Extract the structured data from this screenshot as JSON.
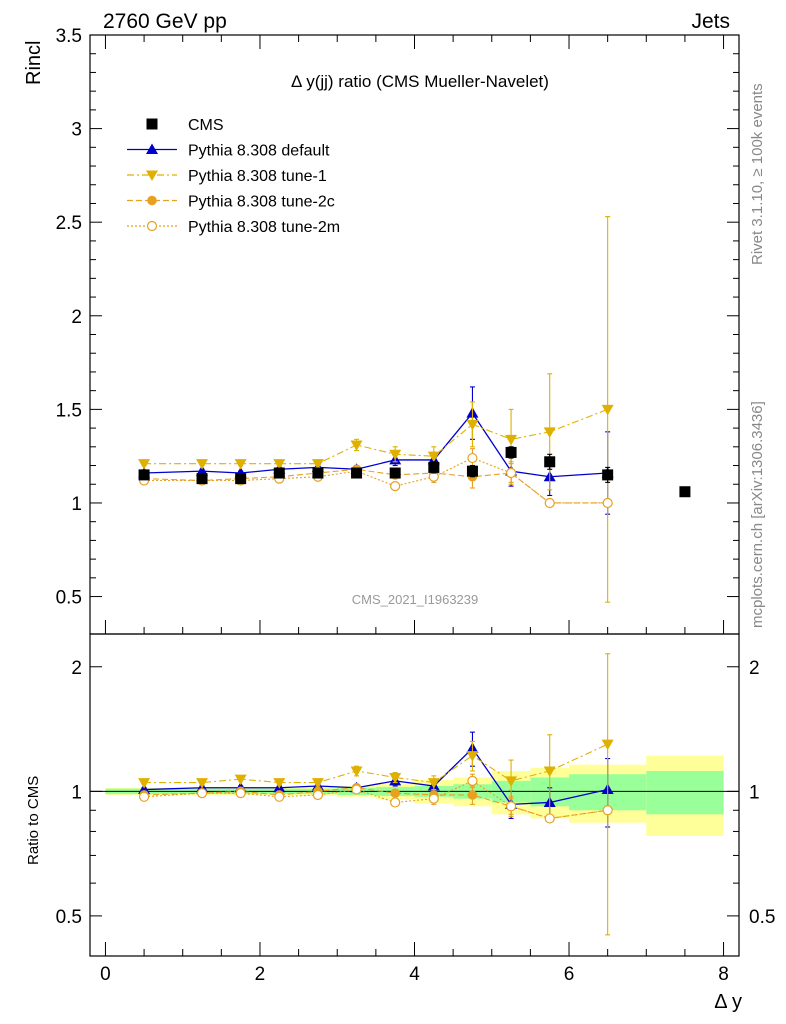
{
  "header": {
    "left": "2760 GeV pp",
    "right": "Jets",
    "side_top": "Rivet 3.1.10, ≥ 100k events",
    "side_bottom": "mcplots.cern.ch [arXiv:1306.3436]"
  },
  "chart_data": [
    {
      "type": "line",
      "title": "Δ y(jj) ratio (CMS Mueller-Navelet)",
      "ylabel": "Rincl",
      "xlabel": "Δ y",
      "watermark": "CMS_2021_I1963239",
      "xlim": [
        -0.2,
        8.2
      ],
      "ylim": [
        0.3,
        3.5
      ],
      "yticks": [
        "0.5",
        "1",
        "1.5",
        "2",
        "2.5",
        "3",
        "3.5"
      ],
      "xticks": [
        "0",
        "2",
        "4",
        "6",
        "8"
      ],
      "legend_position": "top-left",
      "data": {
        "name": "CMS",
        "x": [
          0.5,
          1.25,
          1.75,
          2.25,
          2.75,
          3.25,
          3.75,
          4.25,
          4.75,
          5.25,
          5.75,
          6.5,
          7.5
        ],
        "y": [
          1.15,
          1.13,
          1.13,
          1.16,
          1.16,
          1.16,
          1.16,
          1.19,
          1.17,
          1.27,
          1.22,
          1.15,
          1.06
        ],
        "yerr": [
          0.02,
          0.02,
          0.02,
          0.02,
          0.02,
          0.02,
          0.02,
          0.03,
          0.03,
          0.03,
          0.04,
          0.04,
          0.02
        ]
      },
      "series": [
        {
          "name": "Pythia 8.308 default",
          "color": "#0000cc",
          "marker": "triangle-up",
          "line": "solid",
          "x": [
            0.5,
            1.25,
            1.75,
            2.25,
            2.75,
            3.25,
            3.75,
            4.25,
            4.75,
            5.25,
            5.75,
            6.5
          ],
          "y": [
            1.16,
            1.17,
            1.16,
            1.18,
            1.19,
            1.18,
            1.23,
            1.23,
            1.48,
            1.17,
            1.14,
            1.16
          ],
          "yerr": [
            0.01,
            0.01,
            0.01,
            0.01,
            0.02,
            0.02,
            0.03,
            0.04,
            0.14,
            0.08,
            0.1,
            0.22
          ]
        },
        {
          "name": "Pythia 8.308 tune-1",
          "color": "#e0b000",
          "marker": "triangle-down",
          "line": "dashdot",
          "x": [
            0.5,
            1.25,
            1.75,
            2.25,
            2.75,
            3.25,
            3.75,
            4.25,
            4.75,
            5.25,
            5.75,
            6.5
          ],
          "y": [
            1.21,
            1.21,
            1.21,
            1.21,
            1.21,
            1.31,
            1.26,
            1.25,
            1.42,
            1.34,
            1.38,
            1.5
          ],
          "yerr": [
            0.01,
            0.01,
            0.01,
            0.01,
            0.02,
            0.03,
            0.04,
            0.05,
            0.12,
            0.16,
            0.31,
            1.03
          ]
        },
        {
          "name": "Pythia 8.308 tune-2c",
          "color": "#e8a020",
          "marker": "circle-filled",
          "line": "dashed",
          "x": [
            0.5,
            1.25,
            1.75,
            2.25,
            2.75,
            3.25,
            3.75,
            4.25,
            4.75,
            5.25,
            5.75,
            6.5
          ],
          "y": [
            1.13,
            1.12,
            1.13,
            1.14,
            1.16,
            1.18,
            1.15,
            1.16,
            1.14,
            1.16,
            1.0,
            1.0
          ],
          "yerr": [
            0.01,
            0.01,
            0.01,
            0.01,
            0.01,
            0.02,
            0.02,
            0.03,
            0.06,
            0.05,
            0.01,
            0.01
          ]
        },
        {
          "name": "Pythia 8.308 tune-2m",
          "color": "#e8a020",
          "marker": "circle-open",
          "line": "dotted",
          "x": [
            0.5,
            1.25,
            1.75,
            2.25,
            2.75,
            3.25,
            3.75,
            4.25,
            4.75,
            5.25,
            5.75,
            6.5
          ],
          "y": [
            1.12,
            1.12,
            1.12,
            1.13,
            1.14,
            1.17,
            1.09,
            1.14,
            1.24,
            1.16,
            1.0,
            1.0
          ],
          "yerr": [
            0.01,
            0.01,
            0.01,
            0.01,
            0.01,
            0.02,
            0.02,
            0.03,
            0.05,
            0.06,
            0.01,
            0.01
          ]
        }
      ]
    },
    {
      "type": "line",
      "ylabel": "Ratio to CMS",
      "xlabel": "Δ y",
      "ylim": [
        0.4,
        2.4
      ],
      "yticks": [
        "0.5",
        "1",
        "2"
      ],
      "bands": {
        "bins": [
          [
            0,
            1
          ],
          [
            1,
            1.5
          ],
          [
            1.5,
            2
          ],
          [
            2,
            2.5
          ],
          [
            2.5,
            3
          ],
          [
            3,
            3.5
          ],
          [
            3.5,
            4
          ],
          [
            4,
            4.5
          ],
          [
            4.5,
            5
          ],
          [
            5,
            5.5
          ],
          [
            5.5,
            6
          ],
          [
            6,
            7
          ],
          [
            7,
            8
          ]
        ],
        "stat": [
          0.015,
          0.015,
          0.015,
          0.015,
          0.015,
          0.02,
          0.025,
          0.03,
          0.04,
          0.06,
          0.08,
          0.1,
          0.12
        ],
        "total": [
          0.02,
          0.02,
          0.02,
          0.02,
          0.025,
          0.03,
          0.045,
          0.065,
          0.08,
          0.12,
          0.14,
          0.16,
          0.22
        ]
      },
      "series": [
        {
          "name": "Pythia 8.308 default",
          "y": [
            1.01,
            1.02,
            1.02,
            1.02,
            1.03,
            1.02,
            1.06,
            1.03,
            1.27,
            0.93,
            0.94,
            1.01
          ],
          "yerr": [
            0.01,
            0.01,
            0.01,
            0.01,
            0.02,
            0.02,
            0.03,
            0.03,
            0.12,
            0.07,
            0.08,
            0.19
          ]
        },
        {
          "name": "Pythia 8.308 tune-1",
          "y": [
            1.05,
            1.05,
            1.07,
            1.05,
            1.05,
            1.12,
            1.08,
            1.05,
            1.22,
            1.06,
            1.12,
            1.3
          ],
          "yerr": [
            0.01,
            0.01,
            0.01,
            0.01,
            0.02,
            0.03,
            0.03,
            0.04,
            0.1,
            0.13,
            0.25,
            0.85
          ]
        },
        {
          "name": "Pythia 8.308 tune-2c",
          "y": [
            0.98,
            0.99,
            1.0,
            0.98,
            1.0,
            1.02,
            0.99,
            0.98,
            0.98,
            0.92,
            0.86,
            0.9
          ],
          "yerr": [
            0.01,
            0.01,
            0.01,
            0.01,
            0.01,
            0.02,
            0.02,
            0.03,
            0.05,
            0.04,
            0.01,
            0.01
          ]
        },
        {
          "name": "Pythia 8.308 tune-2m",
          "y": [
            0.97,
            0.99,
            0.99,
            0.97,
            0.98,
            1.01,
            0.94,
            0.96,
            1.06,
            0.92,
            0.86,
            0.9
          ],
          "yerr": [
            0.01,
            0.01,
            0.01,
            0.01,
            0.01,
            0.02,
            0.02,
            0.03,
            0.04,
            0.05,
            0.01,
            0.01
          ]
        }
      ]
    }
  ]
}
